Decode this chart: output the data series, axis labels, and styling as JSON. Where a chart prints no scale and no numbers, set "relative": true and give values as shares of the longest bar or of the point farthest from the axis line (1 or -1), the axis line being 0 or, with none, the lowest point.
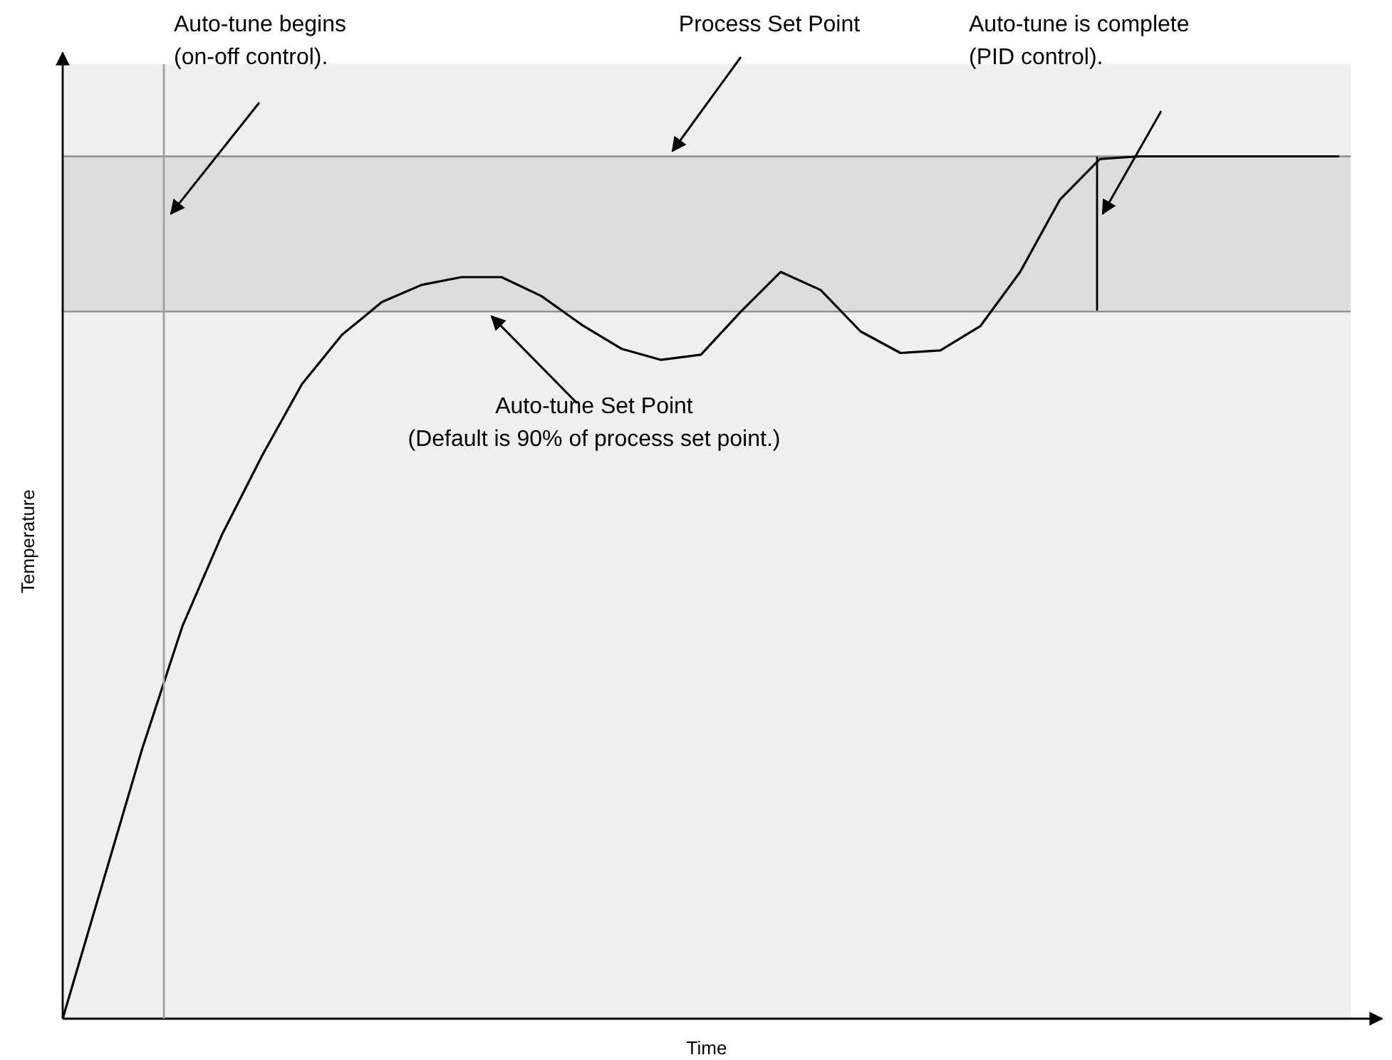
{
  "chart_data": {
    "type": "line",
    "relative": true,
    "xlabel": "Time",
    "ylabel": "Temperature",
    "line_style": "solid",
    "categories": [
      null,
      null,
      null,
      null,
      null,
      null,
      null,
      null,
      null,
      null,
      null,
      null,
      null,
      null,
      null,
      null,
      null,
      null,
      null,
      null,
      null,
      null,
      null,
      null,
      null,
      null,
      null,
      null,
      null,
      null,
      null,
      null,
      null
    ],
    "series": [
      {
        "color": "#000000",
        "values": [
          0,
          0.157,
          0.314,
          0.455,
          0.562,
          0.653,
          0.736,
          0.793,
          0.831,
          0.851,
          0.86,
          0.86,
          0.838,
          0.805,
          0.777,
          0.764,
          0.77,
          0.82,
          0.866,
          0.845,
          0.797,
          0.772,
          0.775,
          0.803,
          0.866,
          0.95,
          0.997,
          1,
          1,
          1,
          1,
          1,
          1
        ]
      }
    ],
    "bands": [
      {
        "axis": "y",
        "from": 0.82,
        "to": 1,
        "color": "#dcdcdc"
      }
    ],
    "ref_lines": [
      {
        "axis": "y",
        "value": 1,
        "label": "Process Set Point",
        "color": "#8c8c8c"
      },
      {
        "axis": "y",
        "value": 0.82,
        "label": "Auto-tune Set Point\n(Default is 90% of process set point.)",
        "color": "#8c8c8c"
      }
    ],
    "annotations": [
      "Auto-tune begins\n(on-off control).",
      "Auto-tune is complete\n(PID control)."
    ]
  }
}
